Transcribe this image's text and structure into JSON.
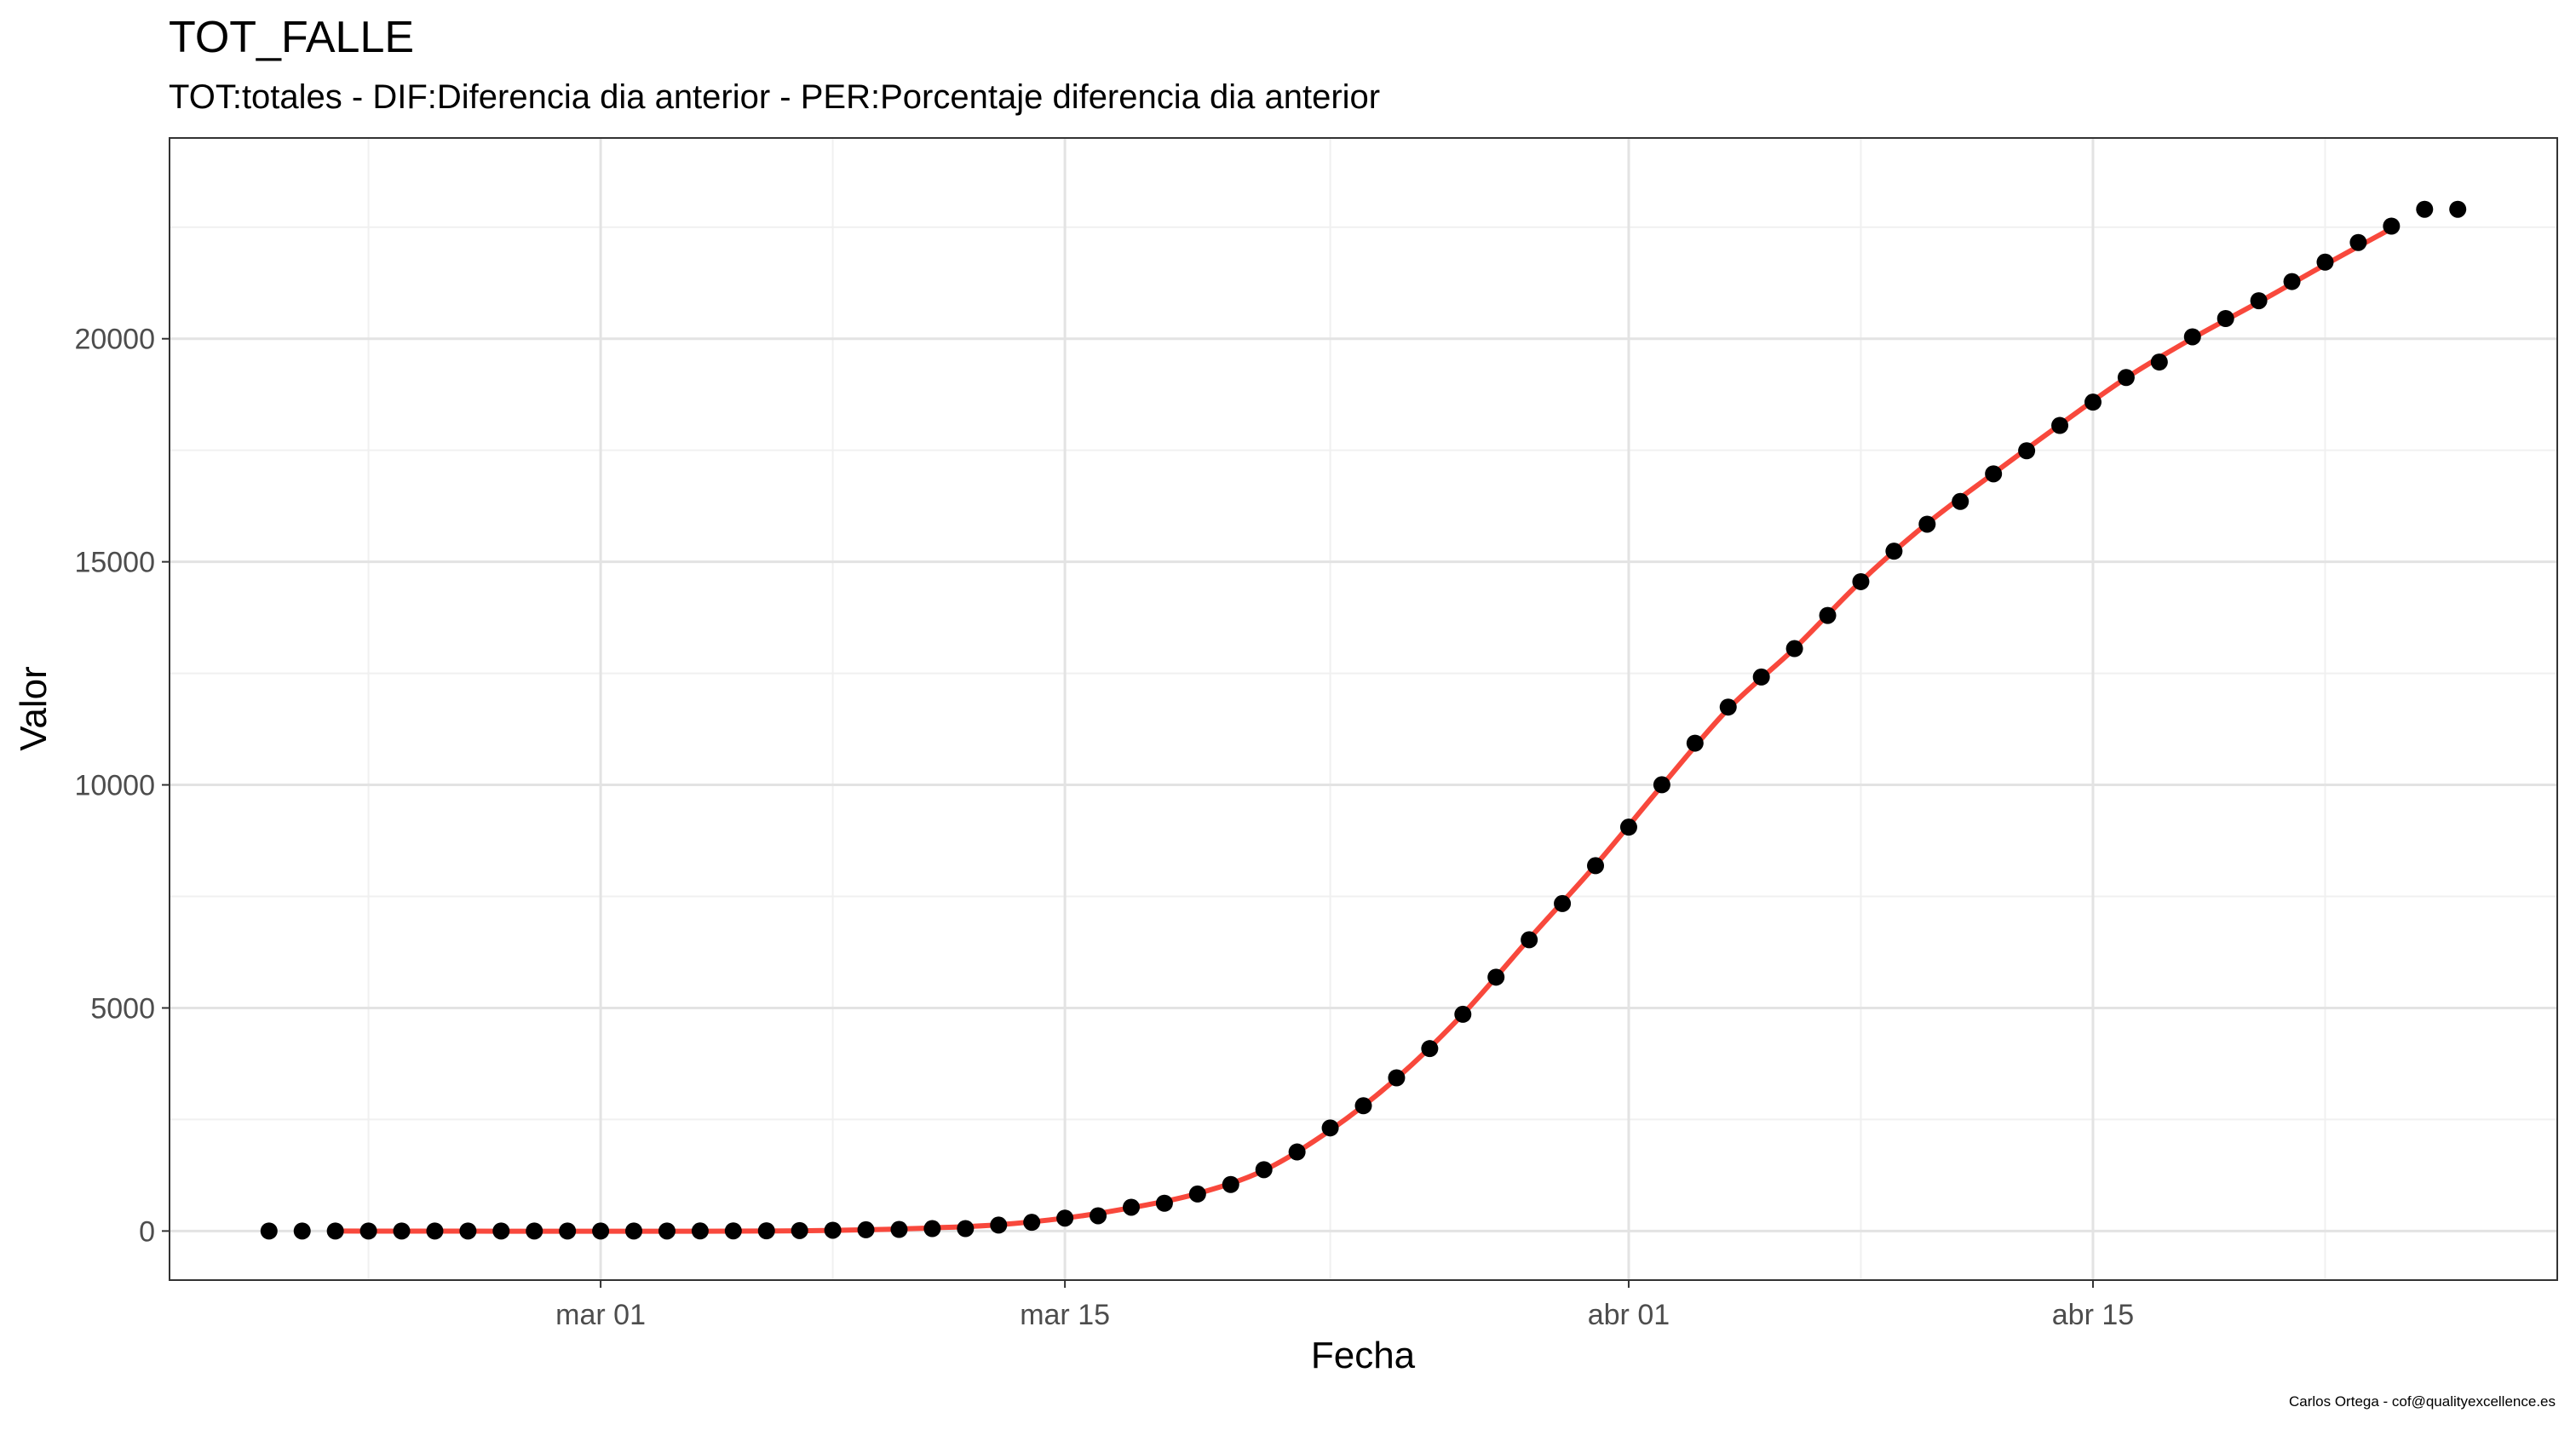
{
  "chart_data": {
    "type": "scatter",
    "title": "TOT_FALLE",
    "subtitle": "TOT:totales - DIF:Diferencia dia anterior - PER:Porcentaje diferencia dia anterior",
    "xlabel": "Fecha",
    "ylabel": "Valor",
    "x_ticks": [
      {
        "date": "2020-03-01",
        "label": "mar 01"
      },
      {
        "date": "2020-03-15",
        "label": "mar 15"
      },
      {
        "date": "2020-04-01",
        "label": "abr 01"
      },
      {
        "date": "2020-04-15",
        "label": "abr 15"
      }
    ],
    "y_ticks": [
      0,
      5000,
      10000,
      15000,
      20000
    ],
    "xlim": [
      "2020-02-17",
      "2020-04-29"
    ],
    "ylim": [
      -1100,
      24500
    ],
    "grid": true,
    "series": [
      {
        "kind": "points",
        "color": "#000000",
        "points": [
          [
            "2020-02-20",
            0
          ],
          [
            "2020-02-21",
            0
          ],
          [
            "2020-02-22",
            0
          ],
          [
            "2020-02-23",
            0
          ],
          [
            "2020-02-24",
            0
          ],
          [
            "2020-02-25",
            0
          ],
          [
            "2020-02-26",
            0
          ],
          [
            "2020-02-27",
            0
          ],
          [
            "2020-02-28",
            0
          ],
          [
            "2020-02-29",
            0
          ],
          [
            "2020-03-01",
            0
          ],
          [
            "2020-03-02",
            0
          ],
          [
            "2020-03-03",
            1
          ],
          [
            "2020-03-04",
            2
          ],
          [
            "2020-03-05",
            3
          ],
          [
            "2020-03-06",
            5
          ],
          [
            "2020-03-07",
            10
          ],
          [
            "2020-03-08",
            17
          ],
          [
            "2020-03-09",
            28
          ],
          [
            "2020-03-10",
            35
          ],
          [
            "2020-03-11",
            54
          ],
          [
            "2020-03-12",
            55
          ],
          [
            "2020-03-13",
            133
          ],
          [
            "2020-03-14",
            195
          ],
          [
            "2020-03-15",
            289
          ],
          [
            "2020-03-16",
            342
          ],
          [
            "2020-03-17",
            533
          ],
          [
            "2020-03-18",
            623
          ],
          [
            "2020-03-19",
            830
          ],
          [
            "2020-03-20",
            1043
          ],
          [
            "2020-03-21",
            1375
          ],
          [
            "2020-03-22",
            1772
          ],
          [
            "2020-03-23",
            2311
          ],
          [
            "2020-03-24",
            2808
          ],
          [
            "2020-03-25",
            3434
          ],
          [
            "2020-03-26",
            4089
          ],
          [
            "2020-03-27",
            4858
          ],
          [
            "2020-03-28",
            5690
          ],
          [
            "2020-03-29",
            6528
          ],
          [
            "2020-03-30",
            7340
          ],
          [
            "2020-03-31",
            8189
          ],
          [
            "2020-04-01",
            9053
          ],
          [
            "2020-04-02",
            10003
          ],
          [
            "2020-04-03",
            10935
          ],
          [
            "2020-04-04",
            11744
          ],
          [
            "2020-04-05",
            12418
          ],
          [
            "2020-04-06",
            13055
          ],
          [
            "2020-04-07",
            13798
          ],
          [
            "2020-04-08",
            14555
          ],
          [
            "2020-04-09",
            15238
          ],
          [
            "2020-04-10",
            15843
          ],
          [
            "2020-04-11",
            16353
          ],
          [
            "2020-04-12",
            16972
          ],
          [
            "2020-04-13",
            17489
          ],
          [
            "2020-04-14",
            18056
          ],
          [
            "2020-04-15",
            18579
          ],
          [
            "2020-04-16",
            19130
          ],
          [
            "2020-04-17",
            19478
          ],
          [
            "2020-04-18",
            20043
          ],
          [
            "2020-04-19",
            20453
          ],
          [
            "2020-04-20",
            20852
          ],
          [
            "2020-04-21",
            21282
          ],
          [
            "2020-04-22",
            21717
          ],
          [
            "2020-04-23",
            22157
          ],
          [
            "2020-04-24",
            22524
          ],
          [
            "2020-04-25",
            22902
          ],
          [
            "2020-04-26",
            22902
          ]
        ]
      },
      {
        "kind": "smooth-line",
        "color": "#F8483C",
        "points": [
          [
            "2020-02-22",
            0
          ],
          [
            "2020-02-24",
            -2
          ],
          [
            "2020-02-26",
            -3
          ],
          [
            "2020-02-28",
            -4
          ],
          [
            "2020-03-01",
            -4
          ],
          [
            "2020-03-03",
            -4
          ],
          [
            "2020-03-05",
            -2
          ],
          [
            "2020-03-07",
            5
          ],
          [
            "2020-03-09",
            28
          ],
          [
            "2020-03-11",
            70
          ],
          [
            "2020-03-13",
            140
          ],
          [
            "2020-03-15",
            290
          ],
          [
            "2020-03-17",
            520
          ],
          [
            "2020-03-19",
            840
          ],
          [
            "2020-03-21",
            1360
          ],
          [
            "2020-03-23",
            2260
          ],
          [
            "2020-03-25",
            3420
          ],
          [
            "2020-03-27",
            4860
          ],
          [
            "2020-03-29",
            6550
          ],
          [
            "2020-03-31",
            8200
          ],
          [
            "2020-04-02",
            9980
          ],
          [
            "2020-04-04",
            11700
          ],
          [
            "2020-04-06",
            13060
          ],
          [
            "2020-04-08",
            14560
          ],
          [
            "2020-04-10",
            15860
          ],
          [
            "2020-04-12",
            16980
          ],
          [
            "2020-04-14",
            18070
          ],
          [
            "2020-04-16",
            19120
          ],
          [
            "2020-04-18",
            20010
          ],
          [
            "2020-04-20",
            20820
          ],
          [
            "2020-04-22",
            21660
          ],
          [
            "2020-04-24",
            22470
          ]
        ]
      }
    ]
  },
  "footer": {
    "caption": "Carlos Ortega - cof@qualityexcellence.es"
  }
}
